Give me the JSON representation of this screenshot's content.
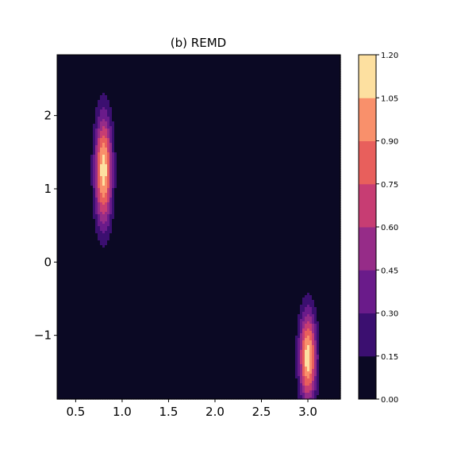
{
  "chart_data": {
    "type": "contourf",
    "title": "(b) REMD",
    "xlabel": "",
    "ylabel": "",
    "xlim": [
      0.3,
      3.35
    ],
    "ylim": [
      -1.87,
      2.83
    ],
    "xticks": [
      0.5,
      1.0,
      1.5,
      2.0,
      2.5,
      3.0
    ],
    "xtick_labels": [
      "0.5",
      "1.0",
      "1.5",
      "2.0",
      "2.5",
      "3.0"
    ],
    "yticks": [
      -1,
      0,
      1,
      2
    ],
    "ytick_labels": [
      "−1",
      "0",
      "1",
      "2"
    ],
    "grid": false,
    "colormap": "magma",
    "colorbar": {
      "levels": [
        0.0,
        0.15,
        0.3,
        0.45,
        0.6,
        0.75,
        0.9,
        1.05,
        1.2
      ],
      "labels": [
        "0.00",
        "0.15",
        "0.30",
        "0.45",
        "0.60",
        "0.75",
        "0.90",
        "1.05",
        "1.20"
      ],
      "colors": [
        "#0b0924",
        "#3b0f70",
        "#6a1b8a",
        "#962c88",
        "#c73d73",
        "#e85f5c",
        "#f9906b",
        "#fde0a0"
      ]
    },
    "peaks": [
      {
        "x": 0.8,
        "y": 1.25,
        "sx": 0.065,
        "sy": 0.52,
        "amp": 1.15
      },
      {
        "x": 3.0,
        "y": -1.3,
        "sx": 0.065,
        "sy": 0.43,
        "amp": 1.15
      }
    ]
  }
}
